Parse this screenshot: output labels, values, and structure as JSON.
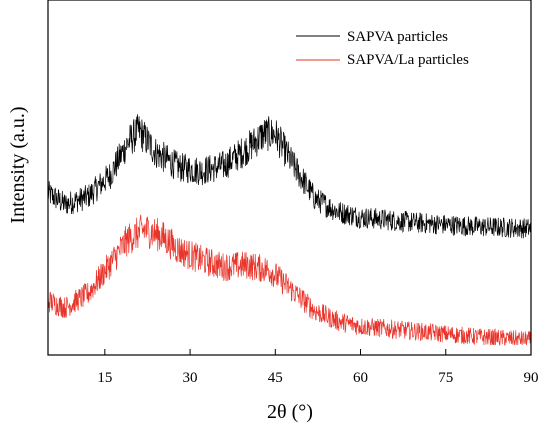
{
  "chart_data": {
    "type": "line",
    "title": "",
    "xlabel": "2θ (°)",
    "ylabel": "Intensity (a.u.)",
    "xlim": [
      5,
      90
    ],
    "xticks": [
      15,
      30,
      45,
      60,
      75,
      90
    ],
    "y_ticks_shown": false,
    "grid": false,
    "legend_position": "top-right",
    "series": [
      {
        "name": "SAPVA particles",
        "color": "#000000",
        "profile": [
          [
            5,
            0.28
          ],
          [
            8,
            0.22
          ],
          [
            12,
            0.26
          ],
          [
            16,
            0.38
          ],
          [
            19,
            0.55
          ],
          [
            21,
            0.62
          ],
          [
            24,
            0.5
          ],
          [
            28,
            0.42
          ],
          [
            32,
            0.4
          ],
          [
            36,
            0.43
          ],
          [
            40,
            0.52
          ],
          [
            43,
            0.6
          ],
          [
            45,
            0.6
          ],
          [
            48,
            0.44
          ],
          [
            52,
            0.25
          ],
          [
            56,
            0.18
          ],
          [
            60,
            0.15
          ],
          [
            70,
            0.12
          ],
          [
            80,
            0.1
          ],
          [
            90,
            0.09
          ]
        ]
      },
      {
        "name": "SAPVA/La particles",
        "color": "#e8342a",
        "profile": [
          [
            5,
            0.26
          ],
          [
            8,
            0.22
          ],
          [
            12,
            0.3
          ],
          [
            16,
            0.48
          ],
          [
            19,
            0.62
          ],
          [
            22,
            0.68
          ],
          [
            25,
            0.64
          ],
          [
            28,
            0.56
          ],
          [
            32,
            0.5
          ],
          [
            36,
            0.46
          ],
          [
            40,
            0.47
          ],
          [
            44,
            0.44
          ],
          [
            48,
            0.32
          ],
          [
            52,
            0.2
          ],
          [
            56,
            0.14
          ],
          [
            60,
            0.11
          ],
          [
            70,
            0.08
          ],
          [
            80,
            0.05
          ],
          [
            90,
            0.03
          ]
        ]
      }
    ]
  }
}
